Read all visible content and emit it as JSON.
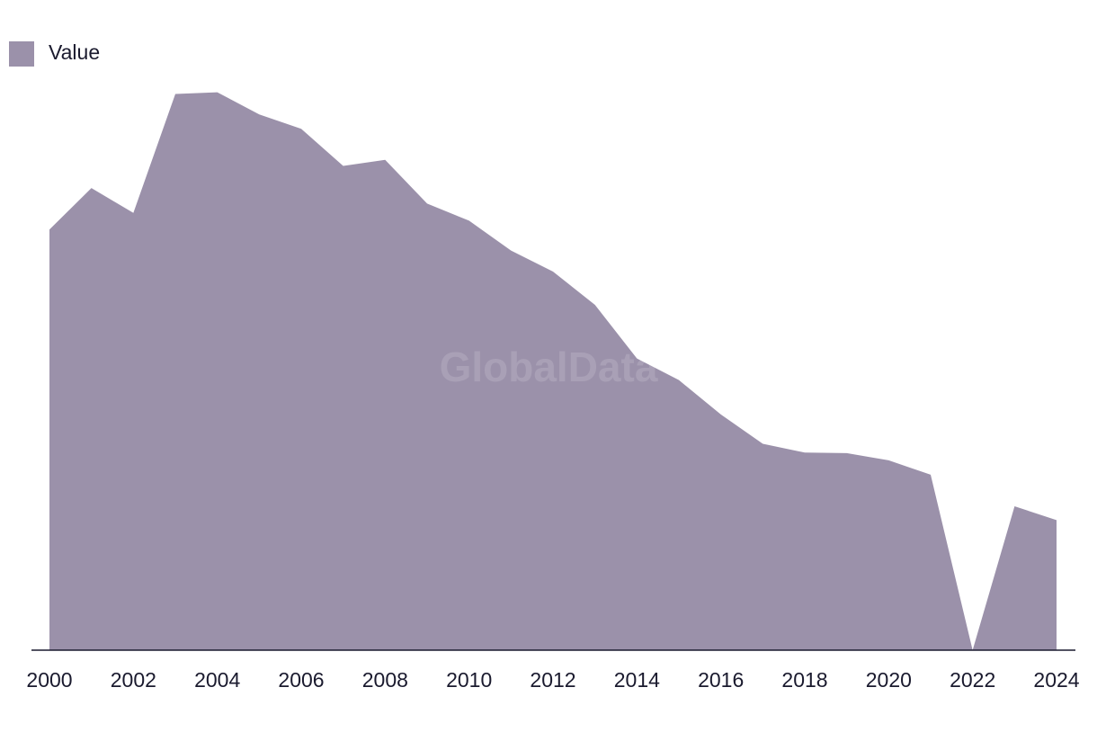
{
  "chart_data": {
    "type": "area",
    "title": "",
    "xlabel": "",
    "ylabel": "",
    "x": [
      2000,
      2001,
      2002,
      2003,
      2004,
      2005,
      2006,
      2007,
      2008,
      2009,
      2010,
      2011,
      2012,
      2013,
      2014,
      2015,
      2016,
      2017,
      2018,
      2019,
      2020,
      2021,
      2022,
      2023,
      2024
    ],
    "x_tick_labels": [
      "2000",
      "2002",
      "2004",
      "2006",
      "2008",
      "2010",
      "2012",
      "2014",
      "2016",
      "2018",
      "2020",
      "2022",
      "2024"
    ],
    "series": [
      {
        "name": "Value",
        "color": "#9b91aa",
        "values": [
          7.6,
          8.35,
          7.9,
          10.05,
          10.08,
          9.68,
          9.42,
          8.75,
          8.86,
          8.07,
          7.76,
          7.22,
          6.84,
          6.24,
          5.27,
          4.88,
          4.26,
          3.73,
          3.57,
          3.56,
          3.43,
          3.17,
          0.0,
          2.6,
          2.35
        ]
      }
    ],
    "ylim": [
      0,
      11.0
    ],
    "grid": false,
    "legend_position": "top-left",
    "watermark": "GlobalData"
  }
}
